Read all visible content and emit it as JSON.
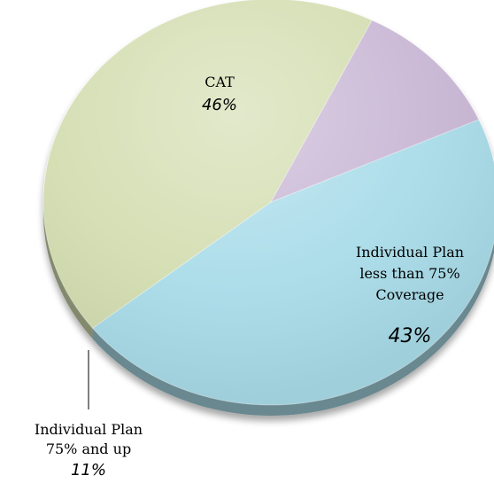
{
  "chart_data": {
    "type": "pie",
    "slices": [
      {
        "label_lines": [
          "CAT"
        ],
        "percent_label": "46%",
        "value": 46,
        "color": "#a9dce9"
      },
      {
        "label_lines": [
          "Individual Plan",
          "less than 75%",
          "Coverage"
        ],
        "percent_label": "43%",
        "value": 43,
        "color": "#d3ddb0"
      },
      {
        "label_lines": [
          "Individual Plan",
          "75% and up"
        ],
        "percent_label": "11%",
        "value": 11,
        "color": "#c9b7d5"
      }
    ]
  }
}
